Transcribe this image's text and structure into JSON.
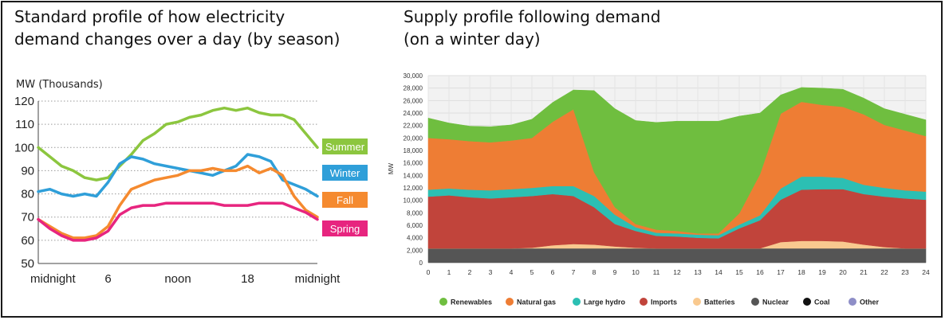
{
  "left": {
    "title": "Standard profile of how electricity\ndemand changes over a day (by season)"
  },
  "right": {
    "title": "Supply profile following demand\n(on a winter day)"
  },
  "chart_data": [
    {
      "type": "line",
      "ylabel": "MW (Thousands)",
      "ylim": [
        50,
        120
      ],
      "yticks": [
        50,
        60,
        70,
        80,
        90,
        100,
        110,
        120
      ],
      "xlim": [
        0,
        24
      ],
      "xticks": [
        {
          "x": 0,
          "label": "midnight"
        },
        {
          "x": 6,
          "label": "6"
        },
        {
          "x": 12,
          "label": "noon"
        },
        {
          "x": 18,
          "label": "18"
        },
        {
          "x": 24,
          "label": "midnight"
        }
      ],
      "grid": true,
      "legend": "right",
      "x": [
        0,
        1,
        2,
        3,
        4,
        5,
        6,
        7,
        8,
        9,
        10,
        11,
        12,
        13,
        14,
        15,
        16,
        17,
        18,
        19,
        20,
        21,
        22,
        23,
        24
      ],
      "series": [
        {
          "name": "Summer",
          "color": "#8cc63f",
          "values": [
            100,
            96,
            92,
            90,
            87,
            86,
            87,
            92,
            97,
            103,
            106,
            110,
            111,
            113,
            114,
            116,
            117,
            116,
            117,
            115,
            114,
            114,
            112,
            106,
            100
          ]
        },
        {
          "name": "Winter",
          "color": "#2f9fd9",
          "values": [
            81,
            82,
            80,
            79,
            80,
            79,
            85,
            93,
            96,
            95,
            93,
            92,
            91,
            90,
            89,
            88,
            90,
            92,
            97,
            96,
            94,
            86,
            84,
            82,
            79
          ]
        },
        {
          "name": "Fall",
          "color": "#f58a2f",
          "values": [
            69,
            66,
            63,
            61,
            61,
            62,
            66,
            75,
            82,
            84,
            86,
            87,
            88,
            90,
            90,
            91,
            90,
            90,
            92,
            89,
            91,
            88,
            79,
            73,
            70
          ]
        },
        {
          "name": "Spring",
          "color": "#e7257f",
          "values": [
            69,
            65,
            62,
            60,
            60,
            61,
            64,
            71,
            74,
            75,
            75,
            76,
            76,
            76,
            76,
            76,
            75,
            75,
            75,
            76,
            76,
            76,
            74,
            72,
            69
          ]
        }
      ]
    },
    {
      "type": "area",
      "ylabel": "MW",
      "ylim": [
        0,
        30000
      ],
      "yticks": [
        0,
        2000,
        4000,
        6000,
        8000,
        10000,
        12000,
        14000,
        16000,
        18000,
        20000,
        22000,
        24000,
        26000,
        28000,
        30000
      ],
      "ytick_labels": [
        "0",
        "2,000",
        "4,000",
        "6,000",
        "8,000",
        "10,000",
        "12,000",
        "14,000",
        "16,000",
        "18,000",
        "20,000",
        "22,000",
        "24,000",
        "26,000",
        "28,000",
        "30,000"
      ],
      "x": [
        0,
        1,
        2,
        3,
        4,
        5,
        6,
        7,
        8,
        9,
        10,
        11,
        12,
        13,
        14,
        15,
        16,
        17,
        18,
        19,
        20,
        21,
        22,
        23,
        24
      ],
      "xticks": [
        "0",
        "1",
        "2",
        "3",
        "4",
        "5",
        "6",
        "7",
        "8",
        "9",
        "10",
        "11",
        "12",
        "13",
        "14",
        "15",
        "16",
        "17",
        "18",
        "19",
        "20",
        "21",
        "22",
        "23",
        "24"
      ],
      "grid": true,
      "legend": "bottom",
      "stacked": true,
      "series": [
        {
          "name": "Nuclear",
          "color": "#555555",
          "values": [
            2300,
            2300,
            2300,
            2300,
            2300,
            2300,
            2300,
            2300,
            2300,
            2300,
            2300,
            2300,
            2300,
            2300,
            2300,
            2300,
            2300,
            2300,
            2300,
            2300,
            2300,
            2300,
            2300,
            2300,
            2300
          ]
        },
        {
          "name": "Batteries",
          "color": "#f9c98f",
          "values": [
            0,
            0,
            0,
            0,
            0,
            100,
            500,
            700,
            600,
            300,
            100,
            0,
            0,
            0,
            0,
            0,
            0,
            1000,
            1200,
            1200,
            1100,
            600,
            200,
            0,
            0
          ]
        },
        {
          "name": "Imports",
          "color": "#c1443b",
          "values": [
            8300,
            8500,
            8200,
            8000,
            8200,
            8300,
            8200,
            7700,
            6000,
            3600,
            2700,
            2000,
            1900,
            1700,
            1600,
            3200,
            4500,
            6800,
            8200,
            8300,
            8400,
            8100,
            8100,
            8000,
            7800
          ]
        },
        {
          "name": "Large hydro",
          "color": "#2cbfb3",
          "values": [
            1100,
            1100,
            1200,
            1300,
            1300,
            1300,
            1300,
            1600,
            1800,
            1500,
            600,
            500,
            500,
            500,
            500,
            600,
            800,
            1800,
            2100,
            2000,
            1800,
            1500,
            1400,
            1300,
            1300
          ]
        },
        {
          "name": "Natural gas",
          "color": "#ee7d34",
          "values": [
            8300,
            7900,
            7800,
            7700,
            7800,
            8000,
            10300,
            12300,
            3800,
            1200,
            500,
            500,
            400,
            200,
            300,
            1800,
            6600,
            12000,
            12000,
            11500,
            11400,
            11300,
            10100,
            9600,
            8900
          ]
        },
        {
          "name": "Coal",
          "color": "#111111",
          "values": [
            0,
            0,
            0,
            0,
            0,
            0,
            0,
            0,
            0,
            0,
            0,
            0,
            0,
            0,
            0,
            0,
            0,
            0,
            0,
            0,
            0,
            0,
            0,
            0,
            0
          ]
        },
        {
          "name": "Other",
          "color": "#8e8ec7",
          "values": [
            0,
            0,
            0,
            0,
            0,
            0,
            0,
            0,
            0,
            0,
            0,
            0,
            0,
            0,
            0,
            0,
            0,
            0,
            0,
            0,
            0,
            0,
            0,
            0,
            0
          ]
        },
        {
          "name": "Renewables",
          "color": "#6fbe3f",
          "values": [
            3200,
            2600,
            2400,
            2500,
            2500,
            3000,
            3100,
            3100,
            13100,
            15800,
            16600,
            17200,
            17600,
            18000,
            18000,
            15600,
            9800,
            3000,
            2300,
            2700,
            2800,
            2600,
            2600,
            2600,
            2600
          ]
        }
      ],
      "legend_order": [
        "Renewables",
        "Natural gas",
        "Large hydro",
        "Imports",
        "Batteries",
        "Nuclear",
        "Coal",
        "Other"
      ]
    }
  ]
}
